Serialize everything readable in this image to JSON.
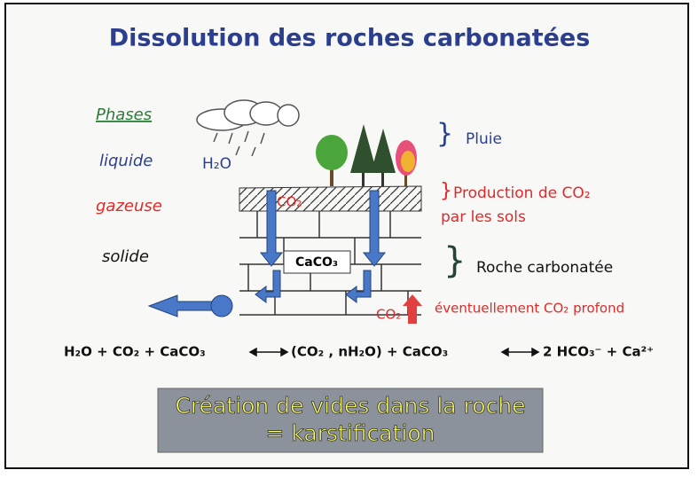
{
  "title": "Dissolution des roches carbonatées",
  "phases": {
    "heading": "Phases",
    "liquid": "liquide",
    "gas": "gazeuse",
    "solid": "solide"
  },
  "diagram": {
    "water": "H₂O",
    "co2_soil": "CO₂",
    "rock": "CaCO₃",
    "co2_deep": "CO₂"
  },
  "legend": {
    "rain": "Pluie",
    "production_1": "Production de CO₂",
    "production_2": "par les sols",
    "rock": "Roche carbonatée",
    "deep": "éventuellement CO₂ profond"
  },
  "equation": [
    "H₂O + CO₂ + CaCO₃",
    "(CO₂ , nH₂O) + CaCO₃",
    "2 HCO₃⁻ + Ca²⁺"
  ],
  "conclusion": [
    "Création de vides dans la roche",
    "= karstification"
  ]
}
